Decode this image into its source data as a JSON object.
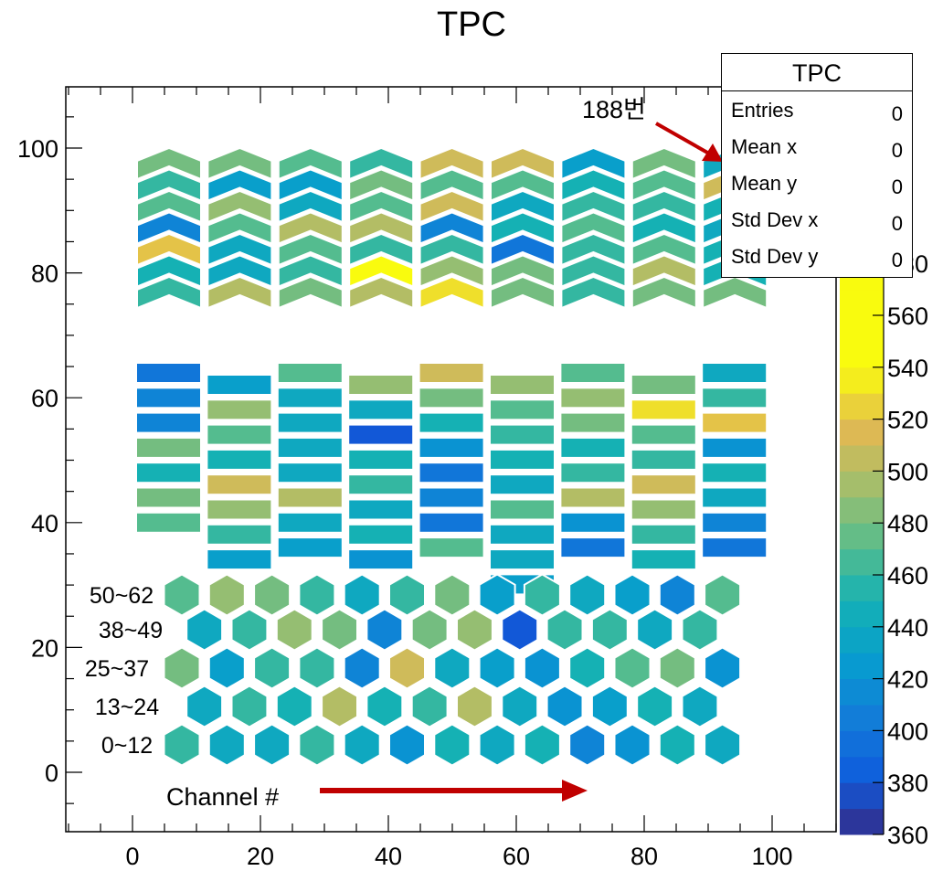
{
  "chart_data": {
    "type": "heatmap",
    "title": "TPC",
    "xlabel": "",
    "ylabel": "",
    "xlim": [
      -10,
      110
    ],
    "ylim": [
      -10,
      110
    ],
    "x_ticks": [
      0,
      20,
      40,
      60,
      80,
      100
    ],
    "y_ticks": [
      0,
      20,
      40,
      60,
      80,
      100
    ],
    "z_range": [
      360,
      540
    ],
    "z_ticks_visible": [
      "360",
      "380",
      "400",
      "420",
      "440",
      "460",
      "480",
      "500",
      "520",
      "540",
      "560",
      "580"
    ],
    "stats_box": {
      "title": "TPC",
      "rows": [
        {
          "label": "Entries",
          "value": "0"
        },
        {
          "label": "Mean x",
          "value": "0"
        },
        {
          "label": "Mean y",
          "value": "0"
        },
        {
          "label": "Std Dev x",
          "value": "0"
        },
        {
          "label": "Std Dev y",
          "value": "0"
        }
      ]
    },
    "annotations": {
      "pad_label": "188번",
      "channel_label": "Channel #",
      "row_labels": [
        "50~62",
        "38~49",
        "25~37",
        "13~24",
        "0~12"
      ]
    },
    "chevron_region": {
      "columns": 9,
      "rows": 7,
      "values": [
        [
          480,
          480,
          470,
          460,
          510,
          510,
          430,
          480,
          440
        ],
        [
          460,
          430,
          430,
          480,
          470,
          470,
          450,
          470,
          510
        ],
        [
          470,
          490,
          440,
          470,
          510,
          440,
          460,
          460,
          450
        ],
        [
          410,
          470,
          500,
          500,
          410,
          450,
          470,
          450,
          440
        ],
        [
          520,
          440,
          470,
          460,
          460,
          400,
          460,
          470,
          450
        ],
        [
          450,
          440,
          460,
          540,
          490,
          480,
          460,
          500,
          450
        ],
        [
          460,
          500,
          480,
          500,
          530,
          480,
          460,
          480,
          480
        ]
      ]
    },
    "rect_region": {
      "columns": 9,
      "values": [
        [
          400,
          430,
          470,
          490,
          510,
          490,
          470,
          480,
          440
        ],
        [
          410,
          490,
          440,
          440,
          480,
          470,
          490,
          530,
          460
        ],
        [
          410,
          470,
          440,
          380,
          450,
          460,
          480,
          470,
          520
        ],
        [
          480,
          450,
          440,
          450,
          420,
          450,
          450,
          460,
          420
        ],
        [
          450,
          510,
          440,
          460,
          400,
          440,
          460,
          510,
          450
        ],
        [
          480,
          490,
          500,
          440,
          410,
          470,
          500,
          490,
          440
        ],
        [
          470,
          460,
          440,
          450,
          400,
          440,
          420,
          460,
          410
        ],
        [
          null,
          430,
          430,
          420,
          470,
          440,
          400,
          450,
          400
        ],
        [
          null,
          null,
          null,
          null,
          null,
          430,
          null,
          null,
          null
        ]
      ]
    },
    "hex_region": {
      "rows": [
        {
          "label": "50~62",
          "values": [
            470,
            490,
            480,
            460,
            440,
            460,
            480,
            430,
            460,
            440,
            430,
            410,
            470
          ]
        },
        {
          "label": "38~49",
          "values": [
            440,
            460,
            490,
            480,
            410,
            480,
            490,
            380,
            460,
            460,
            440,
            460
          ]
        },
        {
          "label": "25~37",
          "values": [
            480,
            430,
            460,
            460,
            410,
            510,
            440,
            430,
            420,
            450,
            470,
            480,
            420
          ]
        },
        {
          "label": "13~24",
          "values": [
            440,
            460,
            450,
            500,
            450,
            460,
            500,
            440,
            420,
            430,
            450,
            440
          ]
        },
        {
          "label": "0~12",
          "values": [
            460,
            440,
            440,
            460,
            440,
            420,
            450,
            440,
            450,
            410,
            420,
            450,
            440
          ]
        }
      ]
    }
  }
}
